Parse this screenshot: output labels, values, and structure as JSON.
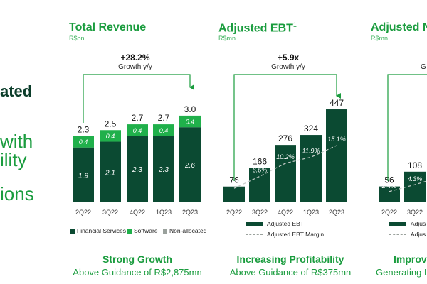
{
  "left_panel": {
    "line1": "ated",
    "line2": "with",
    "line3": "ility",
    "line4": "ions"
  },
  "colors": {
    "dark_green": "#0b4a32",
    "bright_green": "#20b04b",
    "gray": "#9aa19c",
    "title_green": "#1a9c3e"
  },
  "chart_data": [
    {
      "type": "bar",
      "title": "Total Revenue",
      "unit": "R$bn",
      "categories": [
        "2Q22",
        "3Q22",
        "4Q22",
        "1Q23",
        "2Q23"
      ],
      "series": [
        {
          "name": "Financial Services",
          "values": [
            1.9,
            2.1,
            2.3,
            2.3,
            2.6
          ],
          "labels": [
            "1.9",
            "2.1",
            "2.3",
            "2.3",
            "2.6"
          ]
        },
        {
          "name": "Software",
          "values": [
            0.4,
            0.4,
            0.4,
            0.4,
            0.4
          ],
          "labels": [
            "0.4",
            "0.4",
            "0.4",
            "0.4",
            "0.4"
          ]
        },
        {
          "name": "Non-allocated",
          "values": [
            0.0,
            0.0,
            0.0,
            0.0,
            0.0
          ]
        }
      ],
      "totals": [
        "2.3",
        "2.5",
        "2.7",
        "2.7",
        "3.0"
      ],
      "growth_value": "+28.2%",
      "growth_label": "Growth y/y",
      "footer_title": "Strong Growth",
      "footer_subtitle": "Above Guidance of R$2,875mn"
    },
    {
      "type": "bar",
      "title": "Adjusted EBT",
      "title_sup": "1",
      "unit": "R$mn",
      "categories": [
        "2Q22",
        "3Q22",
        "4Q22",
        "1Q23",
        "2Q23"
      ],
      "series": [
        {
          "name": "Adjusted EBT",
          "values": [
            76,
            166,
            276,
            324,
            447
          ]
        },
        {
          "name": "Adjusted EBT Margin",
          "values": [
            3.3,
            6.6,
            10.2,
            11.9,
            15.1
          ],
          "labels": [
            "3.3%",
            "6.6%",
            "10.2%",
            "11.9%",
            "15.1%"
          ]
        }
      ],
      "growth_value": "+5.9x",
      "growth_label": "Growth y/y",
      "footer_title": "Increasing Profitability",
      "footer_subtitle": "Above Guidance of R$375mn"
    },
    {
      "type": "bar",
      "title": "Adjusted N",
      "unit": "R$mn",
      "categories": [
        "2Q22",
        "3Q22"
      ],
      "series": [
        {
          "name": "Adjus",
          "values": [
            56,
            108
          ]
        },
        {
          "name": "Adjus",
          "values": [
            2.4,
            4.3
          ],
          "labels": [
            "2.4%",
            "4.3%"
          ]
        }
      ],
      "growth_label": "G",
      "footer_title": "Improv",
      "footer_subtitle": "Generating I"
    }
  ]
}
